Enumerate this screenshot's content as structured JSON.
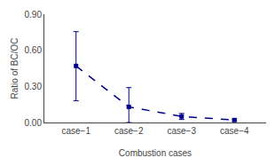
{
  "chart_data": {
    "type": "line",
    "x": [
      1,
      2,
      3,
      4
    ],
    "values": [
      0.47,
      0.13,
      0.05,
      0.02
    ],
    "yerr_lower": [
      0.29,
      0.13,
      0.025,
      0.008
    ],
    "yerr_upper": [
      0.285,
      0.16,
      0.025,
      0.008
    ],
    "color": "#00008B",
    "marker": "square",
    "line_style": "dashed",
    "xlabel": "Combustion cases",
    "ylabel": "Ratio of BC/OC",
    "xlim": [
      0.4,
      4.6
    ],
    "xticks": [
      {
        "value": 1,
        "label": "case−1"
      },
      {
        "value": 2,
        "label": "case−2"
      },
      {
        "value": 3,
        "label": "case−3"
      },
      {
        "value": 4,
        "label": "case−4"
      }
    ],
    "ylim": [
      0.0,
      0.9
    ],
    "yticks": [
      {
        "value": 0.0,
        "label": "0.00"
      },
      {
        "value": 0.3,
        "label": "0.30"
      },
      {
        "value": 0.6,
        "label": "0.60"
      },
      {
        "value": 0.9,
        "label": "0.90"
      }
    ],
    "grid": false
  }
}
